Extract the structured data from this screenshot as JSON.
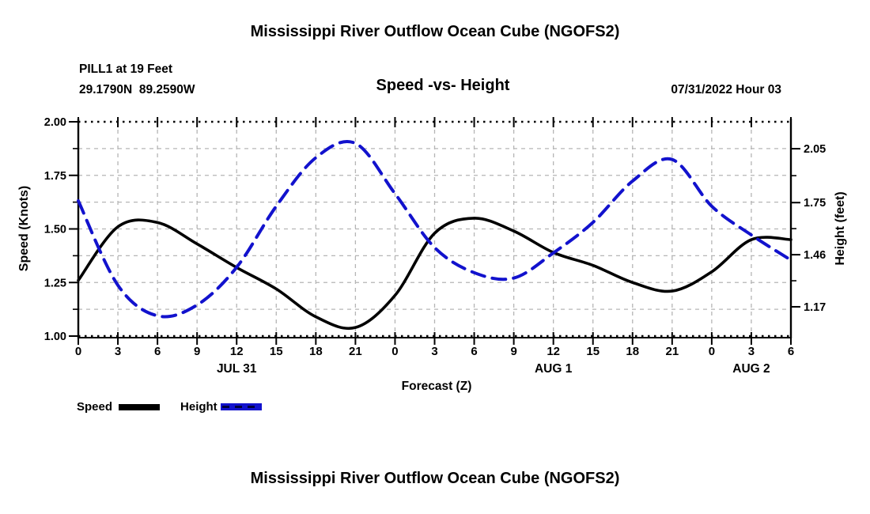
{
  "header": {
    "title": "Mississippi River Outflow Ocean Cube (NGOFS2)",
    "station_line1": "PILL1 at 19 Feet",
    "station_line2": "29.1790N  89.2590W",
    "subtitle": "Speed -vs- Height",
    "datetime_stamp": "07/31/2022 Hour 03"
  },
  "footer": {
    "title": "Mississippi River Outflow Ocean Cube (NGOFS2)"
  },
  "legend": {
    "speed_label": "Speed",
    "height_label": "Height"
  },
  "colors": {
    "speed_line": "#000000",
    "height_line": "#1212cd",
    "grid": "#b5b5b5",
    "frame": "#000000",
    "text": "#000000"
  },
  "chart_data": {
    "type": "line",
    "title": "Speed -vs- Height",
    "xlabel": "Forecast (Z)",
    "ylabel_left": "Speed (Knots)",
    "ylabel_right": "Height (feet)",
    "grid": true,
    "legend_position": "bottom-left",
    "x_range": [
      0,
      54
    ],
    "x_hours": [
      0,
      3,
      6,
      9,
      12,
      15,
      18,
      21,
      24,
      27,
      30,
      33,
      36,
      39,
      42,
      45,
      48,
      51,
      54
    ],
    "x_axis": {
      "ticks": [
        {
          "v": 0,
          "label": "0"
        },
        {
          "v": 3,
          "label": "3"
        },
        {
          "v": 6,
          "label": "6"
        },
        {
          "v": 9,
          "label": "9"
        },
        {
          "v": 12,
          "label": "12"
        },
        {
          "v": 15,
          "label": "15"
        },
        {
          "v": 18,
          "label": "18"
        },
        {
          "v": 21,
          "label": "21"
        },
        {
          "v": 24,
          "label": "0"
        },
        {
          "v": 27,
          "label": "3"
        },
        {
          "v": 30,
          "label": "6"
        },
        {
          "v": 33,
          "label": "9"
        },
        {
          "v": 36,
          "label": "12"
        },
        {
          "v": 39,
          "label": "15"
        },
        {
          "v": 42,
          "label": "18"
        },
        {
          "v": 45,
          "label": "21"
        },
        {
          "v": 48,
          "label": "0"
        },
        {
          "v": 51,
          "label": "3"
        },
        {
          "v": 54,
          "label": "6"
        }
      ],
      "day_labels": [
        {
          "v": 12,
          "label": "JUL 31"
        },
        {
          "v": 36,
          "label": "AUG 1"
        },
        {
          "v": 51,
          "label": "AUG 2"
        }
      ]
    },
    "left_axis": {
      "min": 1.0,
      "max": 2.0,
      "ticks": [
        {
          "v": 2.0,
          "label": "2.00"
        },
        {
          "v": 1.75,
          "label": "1.75"
        },
        {
          "v": 1.5,
          "label": "1.50"
        },
        {
          "v": 1.25,
          "label": "1.25"
        },
        {
          "v": 1.0,
          "label": "1.00"
        }
      ],
      "minor": [
        1.875,
        1.625,
        1.375,
        1.125
      ],
      "grid_values": [
        1.875,
        1.75,
        1.625,
        1.5,
        1.375,
        1.25,
        1.125
      ],
      "edge_dotted": [
        2.0,
        1.0
      ]
    },
    "right_axis": {
      "min": 1.007,
      "max": 2.2,
      "ticks": [
        {
          "v": 2.05,
          "label": "2.05"
        },
        {
          "v": 1.75,
          "label": "1.75"
        },
        {
          "v": 1.46,
          "label": "1.46"
        },
        {
          "v": 1.17,
          "label": "1.17"
        }
      ],
      "minor": [
        1.9,
        1.605,
        1.315
      ]
    },
    "series": [
      {
        "name": "Speed",
        "axis": "left",
        "style": "solid",
        "values": [
          1.26,
          1.51,
          1.53,
          1.43,
          1.32,
          1.22,
          1.09,
          1.04,
          1.19,
          1.48,
          1.55,
          1.49,
          1.39,
          1.33,
          1.25,
          1.21,
          1.3,
          1.45,
          1.45
        ]
      },
      {
        "name": "Height",
        "axis": "right",
        "style": "dashed",
        "values": [
          1.76,
          1.29,
          1.12,
          1.18,
          1.39,
          1.73,
          2.0,
          2.08,
          1.8,
          1.5,
          1.36,
          1.33,
          1.47,
          1.64,
          1.87,
          1.99,
          1.73,
          1.57,
          1.43
        ]
      }
    ]
  }
}
